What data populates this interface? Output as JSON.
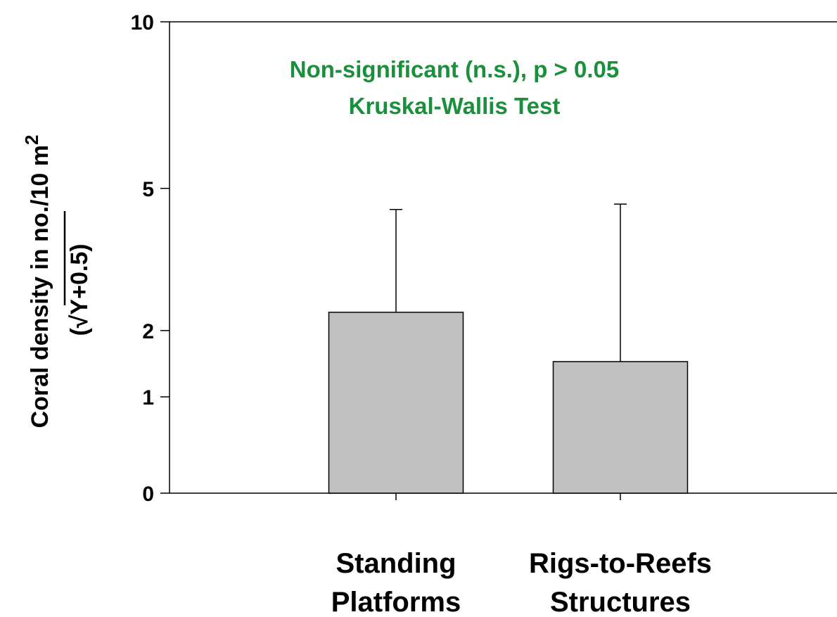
{
  "chart_data": {
    "type": "bar",
    "annotation": [
      "Non-significant (n.s.), p > 0.05",
      "Kruskal-Wallis Test"
    ],
    "ylabel": "Coral density in no./10 m",
    "ylabel_sup": "2",
    "ylabel2": "(√Y+0.5)",
    "categories": [
      [
        "Standing",
        "Platforms"
      ],
      [
        "Rigs-to-Reefs",
        "Structures"
      ]
    ],
    "values": [
      2.32,
      1.5
    ],
    "errors": [
      2.16,
      3.11
    ],
    "color": "#c0c0c0",
    "yscale": "sqrt",
    "yoffset": 0.5,
    "ylim": [
      0,
      10
    ],
    "yticks": [
      0,
      1,
      2,
      5,
      10
    ]
  }
}
